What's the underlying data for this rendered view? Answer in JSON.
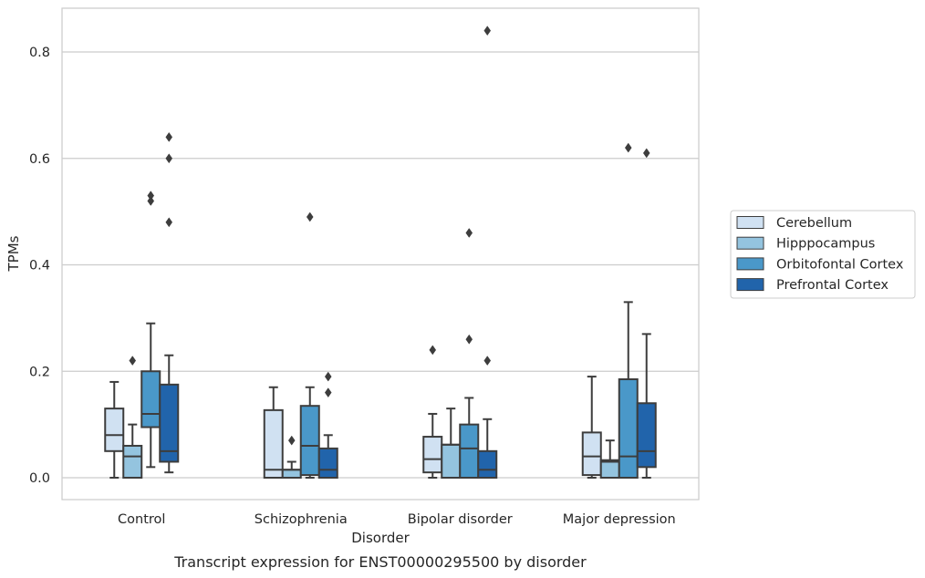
{
  "caption": "Transcript expression for ENST00000295500 by disorder",
  "chart_data": {
    "type": "boxplot",
    "xlabel": "Disorder",
    "ylabel": "TPMs",
    "ylim": [
      -0.04,
      0.885
    ],
    "yticks": [
      0.0,
      0.2,
      0.4,
      0.6,
      0.8
    ],
    "ytick_labels": [
      "0.0",
      "0.2",
      "0.4",
      "0.6",
      "0.8"
    ],
    "grid": "horizontal",
    "legend_position": "right",
    "categories": [
      "Control",
      "Schizophrenia",
      "Bipolar disorder",
      "Major depression"
    ],
    "series": [
      {
        "name": "Cerebellum",
        "color": "#d0e1f2",
        "boxes": [
          {
            "whisker_low": 0.0,
            "q1": 0.05,
            "median": 0.08,
            "q3": 0.13,
            "whisker_high": 0.18,
            "outliers": []
          },
          {
            "whisker_low": 0.0,
            "q1": 0.0,
            "median": 0.015,
            "q3": 0.127,
            "whisker_high": 0.17,
            "outliers": []
          },
          {
            "whisker_low": 0.0,
            "q1": 0.01,
            "median": 0.035,
            "q3": 0.077,
            "whisker_high": 0.12,
            "outliers": [
              0.24
            ]
          },
          {
            "whisker_low": 0.0,
            "q1": 0.005,
            "median": 0.04,
            "q3": 0.085,
            "whisker_high": 0.19,
            "outliers": []
          }
        ]
      },
      {
        "name": "Hipppocampus",
        "color": "#94c4df",
        "boxes": [
          {
            "whisker_low": 0.0,
            "q1": 0.0,
            "median": 0.04,
            "q3": 0.06,
            "whisker_high": 0.1,
            "outliers": [
              0.22
            ]
          },
          {
            "whisker_low": 0.0,
            "q1": 0.0,
            "median": 0.015,
            "q3": 0.015,
            "whisker_high": 0.03,
            "outliers": [
              0.07
            ]
          },
          {
            "whisker_low": 0.0,
            "q1": 0.0,
            "median": 0.062,
            "q3": 0.062,
            "whisker_high": 0.13,
            "outliers": []
          },
          {
            "whisker_low": 0.0,
            "q1": 0.0,
            "median": 0.03,
            "q3": 0.033,
            "whisker_high": 0.07,
            "outliers": []
          }
        ]
      },
      {
        "name": "Orbitofontal Cortex",
        "color": "#4a98c9",
        "boxes": [
          {
            "whisker_low": 0.02,
            "q1": 0.095,
            "median": 0.12,
            "q3": 0.2,
            "whisker_high": 0.29,
            "outliers": [
              0.52,
              0.53
            ]
          },
          {
            "whisker_low": 0.0,
            "q1": 0.005,
            "median": 0.06,
            "q3": 0.135,
            "whisker_high": 0.17,
            "outliers": [
              0.49
            ]
          },
          {
            "whisker_low": 0.0,
            "q1": 0.0,
            "median": 0.055,
            "q3": 0.1,
            "whisker_high": 0.15,
            "outliers": [
              0.26,
              0.46
            ]
          },
          {
            "whisker_low": 0.0,
            "q1": 0.0,
            "median": 0.04,
            "q3": 0.185,
            "whisker_high": 0.33,
            "outliers": [
              0.62
            ]
          }
        ]
      },
      {
        "name": "Prefrontal Cortex",
        "color": "#2164ab",
        "boxes": [
          {
            "whisker_low": 0.01,
            "q1": 0.03,
            "median": 0.05,
            "q3": 0.175,
            "whisker_high": 0.23,
            "outliers": [
              0.48,
              0.6,
              0.64
            ]
          },
          {
            "whisker_low": 0.0,
            "q1": 0.0,
            "median": 0.015,
            "q3": 0.055,
            "whisker_high": 0.08,
            "outliers": [
              0.16,
              0.19
            ]
          },
          {
            "whisker_low": 0.0,
            "q1": 0.0,
            "median": 0.015,
            "q3": 0.05,
            "whisker_high": 0.11,
            "outliers": [
              0.22,
              0.84
            ]
          },
          {
            "whisker_low": 0.0,
            "q1": 0.02,
            "median": 0.05,
            "q3": 0.14,
            "whisker_high": 0.27,
            "outliers": [
              0.61
            ]
          }
        ]
      }
    ]
  }
}
